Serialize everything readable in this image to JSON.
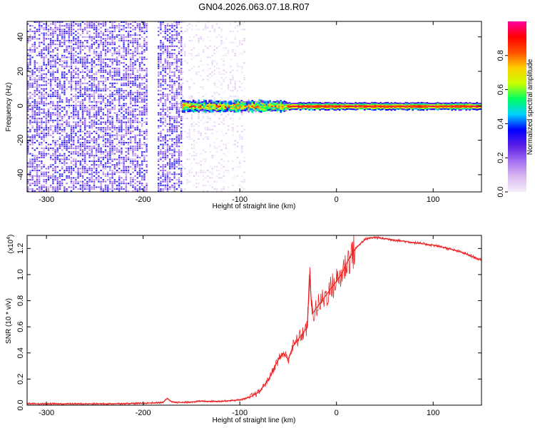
{
  "title": "GN04.2026.063.07.18.R07",
  "chart_data": [
    {
      "type": "heatmap",
      "xlabel": "Height of straight line (km)",
      "ylabel": "Frequency (Hz)",
      "xlim": [
        -320,
        150
      ],
      "ylim": [
        -50,
        49
      ],
      "xticks": [
        -300,
        -200,
        -100,
        0,
        100
      ],
      "yticks": [
        -40,
        -20,
        0,
        20,
        40
      ],
      "colorbar": {
        "label": "Normalized spectral amplitude",
        "range": [
          0.0,
          1.0
        ],
        "ticks": [
          0.0,
          0.2,
          0.4,
          0.6,
          0.8
        ],
        "tick_labels": [
          "0.0",
          "0.2",
          "0.4",
          "0.6",
          "0.8"
        ],
        "colors": [
          "#f5eefa",
          "#d9b8f0",
          "#a36ef0",
          "#5a1ee6",
          "#0000ff",
          "#00d0ff",
          "#00ff60",
          "#c8ff00",
          "#ffd000",
          "#ff5000",
          "#ff0000",
          "#ff00a0"
        ]
      },
      "regions": [
        {
          "x_range": [
            -320,
            -195
          ],
          "frequency_range": [
            -50,
            49
          ],
          "level": 0.1,
          "coverage": "dense"
        },
        {
          "x_range": [
            -185,
            -160
          ],
          "frequency_range": [
            -50,
            49
          ],
          "level": 0.1,
          "coverage": "dense"
        },
        {
          "x_range": [
            -160,
            -95
          ],
          "frequency_range": [
            -50,
            49
          ],
          "level": 0.03,
          "coverage": "sparse"
        },
        {
          "x_range": [
            -160,
            150
          ],
          "frequency_range": [
            -3,
            3
          ],
          "level": 0.9,
          "coverage": "band"
        }
      ]
    },
    {
      "type": "line",
      "xlabel": "Height of straight line (km)",
      "ylabel": "SNR (10 * v/v)",
      "multiplier": "(x10",
      "multiplier_exp": "4",
      "multiplier_close": ")",
      "xlim": [
        -320,
        150
      ],
      "ylim": [
        0,
        1.3
      ],
      "xticks": [
        -300,
        -200,
        -100,
        0,
        100
      ],
      "yticks": [
        0.0,
        0.2,
        0.4,
        0.6,
        0.8,
        1.0,
        1.2
      ],
      "ytick_labels": [
        "0.0",
        "0.2",
        "0.4",
        "0.6",
        "0.8",
        "1.0",
        "1.2"
      ],
      "color": "#ee2222",
      "series": [
        {
          "x": [
            -320,
            -280,
            -240,
            -200,
            -180,
            -175,
            -170,
            -160,
            -140,
            -120,
            -100,
            -90,
            -80,
            -70,
            -65,
            -60,
            -55,
            -50,
            -45,
            -40,
            -35,
            -30,
            -28,
            -25,
            -20,
            -15,
            -10,
            -5,
            0,
            5,
            10,
            15,
            20,
            25,
            30,
            35,
            40,
            45,
            50,
            60,
            70,
            80,
            90,
            100,
            110,
            120,
            130,
            140,
            150
          ],
          "values": [
            0.01,
            0.01,
            0.01,
            0.015,
            0.02,
            0.05,
            0.025,
            0.02,
            0.03,
            0.03,
            0.04,
            0.06,
            0.1,
            0.2,
            0.28,
            0.35,
            0.4,
            0.35,
            0.45,
            0.5,
            0.55,
            0.6,
            1.0,
            0.7,
            0.75,
            0.8,
            0.85,
            0.9,
            0.95,
            1.0,
            1.08,
            1.15,
            1.2,
            1.24,
            1.27,
            1.28,
            1.285,
            1.28,
            1.275,
            1.265,
            1.255,
            1.245,
            1.235,
            1.225,
            1.21,
            1.19,
            1.17,
            1.14,
            1.11
          ]
        }
      ]
    }
  ]
}
